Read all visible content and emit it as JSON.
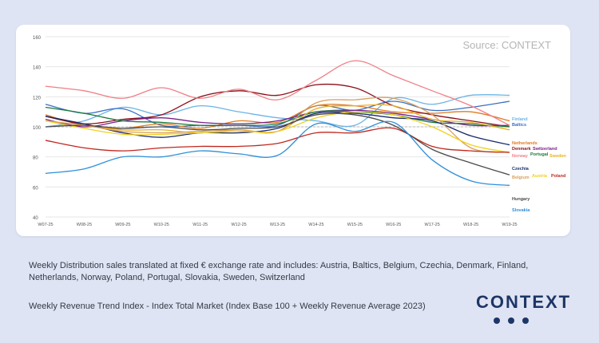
{
  "source_label": "Source: CONTEXT",
  "captions": {
    "scope": "Weekly Distribution sales translated at fixed € exchange rate and includes: Austria, Baltics, Belgium, Czechia, Denmark, Finland, Netherlands, Norway, Poland, Portugal, Slovakia, Sweden, Switzerland",
    "index": "Weekly Revenue Trend Index - Index Total Market (Index Base 100 + Weekly Revenue Average 2023)"
  },
  "logo": {
    "text": "CONTEXT",
    "color": "#1e3666"
  },
  "chart_data": {
    "type": "line",
    "title": "",
    "xlabel": "",
    "ylabel": "",
    "x": [
      "W07-25",
      "W08-25",
      "W09-25",
      "W10-25",
      "W11-25",
      "W12-25",
      "W13-25",
      "W14-25",
      "W15-25",
      "W16-25",
      "W17-25",
      "W18-25",
      "W19-25"
    ],
    "ylim": [
      40,
      160
    ],
    "yticks": [
      40,
      60,
      80,
      100,
      120,
      140,
      160
    ],
    "reference_line": 100,
    "grid": true,
    "series": [
      {
        "name": "Finland",
        "color": "#6cb4e6",
        "values": [
          100,
          104,
          113,
          108,
          114,
          110,
          106,
          104,
          101,
          119,
          115,
          121,
          121
        ]
      },
      {
        "name": "Baltics",
        "color": "#3b6fc2",
        "values": [
          115,
          109,
          112,
          101,
          101,
          101,
          101,
          114,
          111,
          117,
          111,
          113,
          117
        ]
      },
      {
        "name": "Netherlands",
        "color": "#e07b1f",
        "values": [
          108,
          101,
          99,
          102,
          99,
          104,
          103,
          114,
          114,
          110,
          109,
          110,
          104
        ]
      },
      {
        "name": "Denmark",
        "color": "#8b0f1a",
        "values": [
          107,
          102,
          105,
          108,
          120,
          124,
          121,
          128,
          126,
          114,
          108,
          104,
          100
        ]
      },
      {
        "name": "Switzerland",
        "color": "#7a1f8c",
        "values": [
          105,
          100,
          104,
          106,
          103,
          102,
          104,
          110,
          111,
          109,
          105,
          101,
          101
        ]
      },
      {
        "name": "Norway",
        "color": "#f07f86",
        "values": [
          127,
          124,
          119,
          126,
          119,
          125,
          118,
          131,
          144,
          134,
          124,
          114,
          101
        ]
      },
      {
        "name": "Portugal",
        "color": "#1a7a3c",
        "values": [
          113,
          109,
          104,
          103,
          101,
          101,
          102,
          110,
          110,
          108,
          103,
          102,
          100
        ]
      },
      {
        "name": "Sweden",
        "color": "#e8b020",
        "values": [
          104,
          101,
          98,
          98,
          96,
          98,
          97,
          112,
          114,
          114,
          105,
          103,
          98
        ]
      },
      {
        "name": "Czechia",
        "color": "#1a2a6c",
        "values": [
          107,
          102,
          96,
          93,
          96,
          96,
          99,
          109,
          109,
          106,
          104,
          94,
          88
        ]
      },
      {
        "name": "Belgium",
        "color": "#d9a05c",
        "values": [
          104,
          101,
          97,
          96,
          97,
          98,
          97,
          116,
          118,
          119,
          108,
          86,
          83
        ]
      },
      {
        "name": "Austria",
        "color": "#f0d020",
        "values": [
          104,
          99,
          95,
          95,
          96,
          97,
          97,
          106,
          110,
          108,
          100,
          88,
          83
        ]
      },
      {
        "name": "Poland",
        "color": "#c0281e",
        "values": [
          91,
          86,
          84,
          86,
          87,
          87,
          89,
          96,
          96,
          99,
          87,
          84,
          83
        ]
      },
      {
        "name": "Hungary",
        "color": "#4a4a4a",
        "values": [
          100,
          101,
          99,
          100,
          98,
          99,
          100,
          108,
          108,
          101,
          85,
          76,
          68
        ]
      },
      {
        "name": "Slovakia",
        "color": "#2f8fd8",
        "values": [
          69,
          72,
          80,
          80,
          84,
          82,
          81,
          102,
          97,
          103,
          78,
          64,
          61
        ]
      }
    ],
    "legend_placement": "right, at line ends"
  }
}
